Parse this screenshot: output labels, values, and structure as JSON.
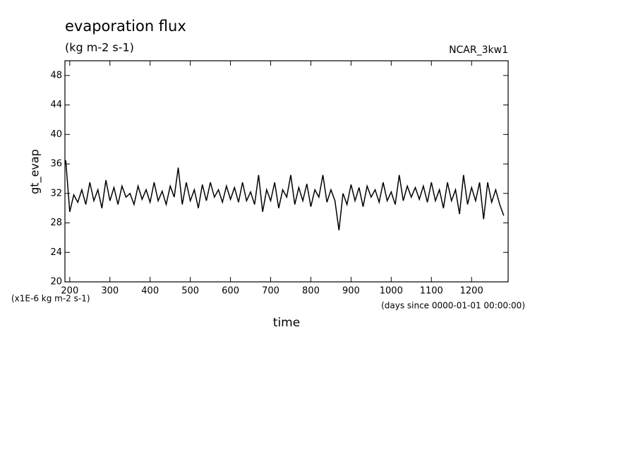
{
  "chart_data": {
    "type": "line",
    "title": "evaporation flux",
    "subtitle": "(kg m-2 s-1)",
    "annotation": "NCAR_3kw1",
    "y_label": "gt_evap",
    "x_label": "time",
    "y_unit_note": "(x1E-6 kg m-2 s-1)",
    "x_unit_note": "(days since 0000-01-01 00:00:00)",
    "xlim": [
      188,
      1291
    ],
    "ylim": [
      20,
      50
    ],
    "xticks": [
      200,
      300,
      400,
      500,
      600,
      700,
      800,
      900,
      1000,
      1100,
      1200
    ],
    "yticks": [
      20,
      24,
      28,
      32,
      36,
      40,
      44,
      48
    ],
    "x": [
      190,
      200,
      210,
      220,
      230,
      240,
      250,
      260,
      270,
      280,
      290,
      300,
      310,
      320,
      330,
      340,
      350,
      360,
      370,
      380,
      390,
      400,
      410,
      420,
      430,
      440,
      450,
      460,
      470,
      480,
      490,
      500,
      510,
      520,
      530,
      540,
      550,
      560,
      570,
      580,
      590,
      600,
      610,
      620,
      630,
      640,
      650,
      660,
      670,
      680,
      690,
      700,
      710,
      720,
      730,
      740,
      750,
      760,
      770,
      780,
      790,
      800,
      810,
      820,
      830,
      840,
      850,
      860,
      870,
      880,
      890,
      900,
      910,
      920,
      930,
      940,
      950,
      960,
      970,
      980,
      990,
      1000,
      1010,
      1020,
      1030,
      1040,
      1050,
      1060,
      1070,
      1080,
      1090,
      1100,
      1110,
      1120,
      1130,
      1140,
      1150,
      1160,
      1170,
      1180,
      1190,
      1200,
      1210,
      1220,
      1230,
      1240,
      1250,
      1260,
      1270,
      1280
    ],
    "series": [
      {
        "name": "gt_evap",
        "color": "#000000",
        "values": [
          36.5,
          29.5,
          31.8,
          30.8,
          32.5,
          30.5,
          33.5,
          31,
          32.5,
          30,
          33.8,
          31,
          32.8,
          30.5,
          33,
          31.5,
          32,
          30.5,
          33,
          31.2,
          32.5,
          30.8,
          33.5,
          31,
          32.3,
          30.5,
          33,
          31.5,
          35.5,
          30.5,
          33.5,
          31,
          32.5,
          30,
          33.2,
          31,
          33.5,
          31.5,
          32.5,
          30.8,
          33,
          31.2,
          32.8,
          30.8,
          33.5,
          31,
          32.2,
          30.5,
          34.5,
          29.5,
          32.5,
          31,
          33.5,
          30,
          32.5,
          31.5,
          34.5,
          30.5,
          32.8,
          31,
          33.3,
          30.2,
          32.5,
          31.5,
          34.5,
          30.8,
          32.5,
          31,
          27,
          32,
          30.5,
          33.2,
          31,
          32.8,
          30.2,
          33,
          31.5,
          32.5,
          30.8,
          33.5,
          31,
          32.2,
          30.5,
          34.5,
          31,
          33,
          31.5,
          32.8,
          31.2,
          33,
          30.8,
          33.5,
          31,
          32.5,
          30,
          33.5,
          31,
          32.5,
          29.2,
          34.5,
          30.5,
          32.8,
          31,
          33.5,
          28.5,
          33.5,
          30.8,
          32.5,
          30.5,
          29
        ]
      }
    ]
  }
}
